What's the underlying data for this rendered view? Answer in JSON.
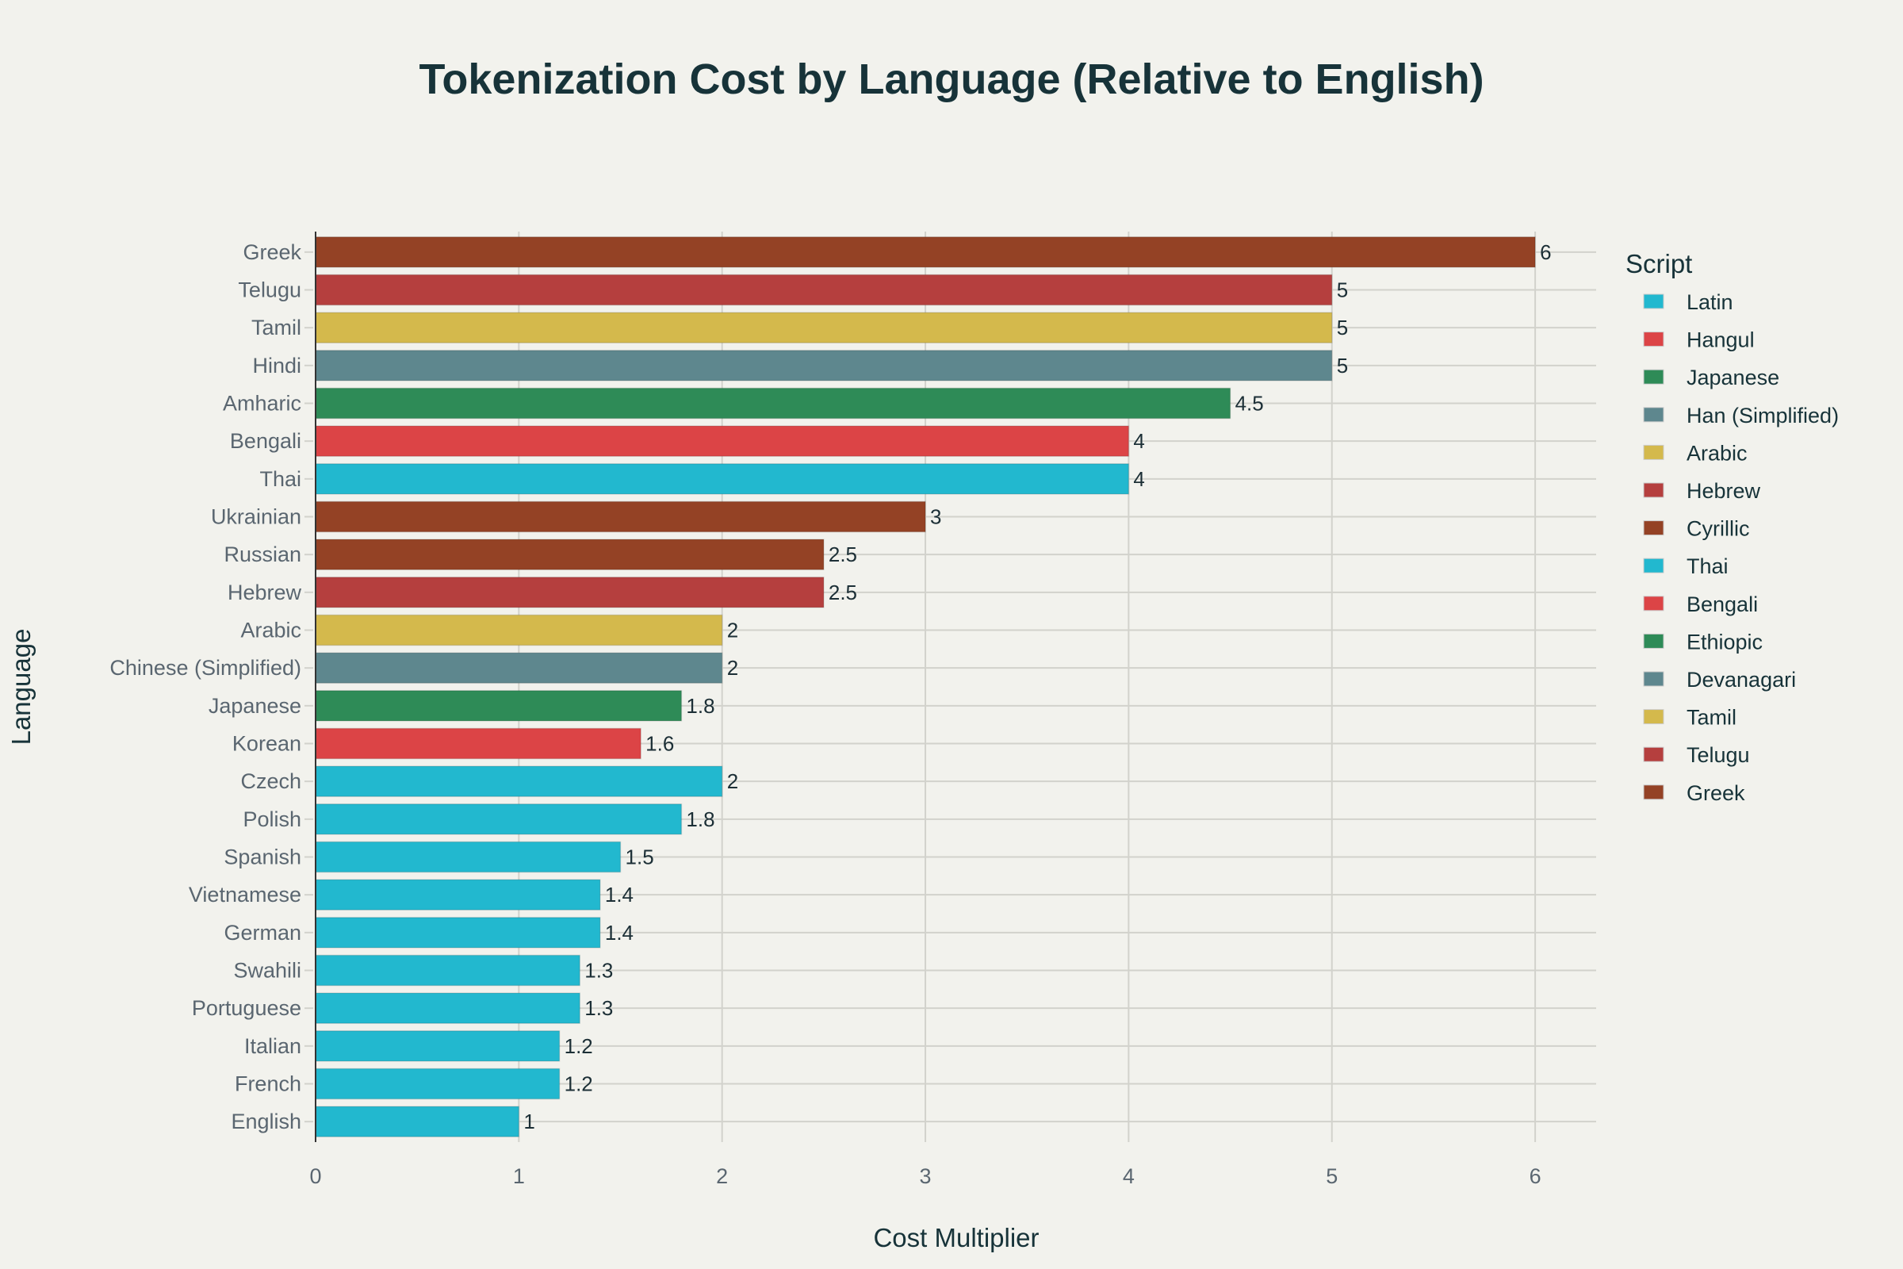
{
  "chart_data": {
    "type": "bar",
    "orientation": "horizontal",
    "title": "Tokenization Cost by Language (Relative to English)",
    "xlabel": "Cost Multiplier",
    "ylabel": "Language",
    "xlim": [
      0,
      6.3
    ],
    "xticks": [
      0,
      1,
      2,
      3,
      4,
      5,
      6
    ],
    "grid": true,
    "legend_title": "Script",
    "legend_placement": "right",
    "legend": [
      {
        "name": "Latin",
        "color": "#22b8cf"
      },
      {
        "name": "Hangul",
        "color": "#dc4446"
      },
      {
        "name": "Japanese",
        "color": "#2e8b57"
      },
      {
        "name": "Han (Simplified)",
        "color": "#5e878e"
      },
      {
        "name": "Arabic",
        "color": "#d4b94c"
      },
      {
        "name": "Hebrew",
        "color": "#b53f3e"
      },
      {
        "name": "Cyrillic",
        "color": "#944225"
      },
      {
        "name": "Thai",
        "color": "#22b8cf"
      },
      {
        "name": "Bengali",
        "color": "#dc4446"
      },
      {
        "name": "Ethiopic",
        "color": "#2e8b57"
      },
      {
        "name": "Devanagari",
        "color": "#5e878e"
      },
      {
        "name": "Tamil",
        "color": "#d4b94c"
      },
      {
        "name": "Telugu",
        "color": "#b53f3e"
      },
      {
        "name": "Greek",
        "color": "#944225"
      }
    ],
    "bars": [
      {
        "language": "Greek",
        "value": 6,
        "script": "Greek"
      },
      {
        "language": "Telugu",
        "value": 5,
        "script": "Telugu"
      },
      {
        "language": "Tamil",
        "value": 5,
        "script": "Tamil"
      },
      {
        "language": "Hindi",
        "value": 5,
        "script": "Devanagari"
      },
      {
        "language": "Amharic",
        "value": 4.5,
        "script": "Ethiopic"
      },
      {
        "language": "Bengali",
        "value": 4,
        "script": "Bengali"
      },
      {
        "language": "Thai",
        "value": 4,
        "script": "Thai"
      },
      {
        "language": "Ukrainian",
        "value": 3,
        "script": "Cyrillic"
      },
      {
        "language": "Russian",
        "value": 2.5,
        "script": "Cyrillic"
      },
      {
        "language": "Hebrew",
        "value": 2.5,
        "script": "Hebrew"
      },
      {
        "language": "Arabic",
        "value": 2,
        "script": "Arabic"
      },
      {
        "language": "Chinese (Simplified)",
        "value": 2,
        "script": "Han (Simplified)"
      },
      {
        "language": "Japanese",
        "value": 1.8,
        "script": "Japanese"
      },
      {
        "language": "Korean",
        "value": 1.6,
        "script": "Hangul"
      },
      {
        "language": "Czech",
        "value": 2,
        "script": "Latin"
      },
      {
        "language": "Polish",
        "value": 1.8,
        "script": "Latin"
      },
      {
        "language": "Spanish",
        "value": 1.5,
        "script": "Latin"
      },
      {
        "language": "Vietnamese",
        "value": 1.4,
        "script": "Latin"
      },
      {
        "language": "German",
        "value": 1.4,
        "script": "Latin"
      },
      {
        "language": "Swahili",
        "value": 1.3,
        "script": "Latin"
      },
      {
        "language": "Portuguese",
        "value": 1.3,
        "script": "Latin"
      },
      {
        "language": "Italian",
        "value": 1.2,
        "script": "Latin"
      },
      {
        "language": "French",
        "value": 1.2,
        "script": "Latin"
      },
      {
        "language": "English",
        "value": 1,
        "script": "Latin"
      }
    ]
  }
}
